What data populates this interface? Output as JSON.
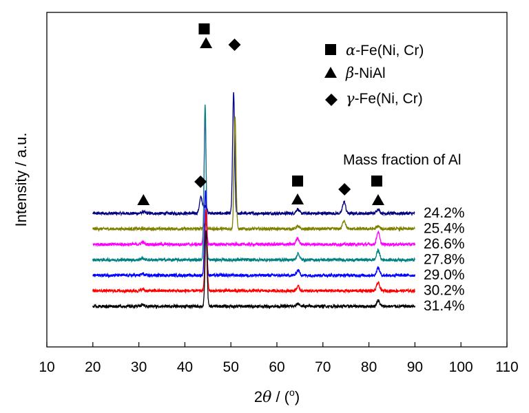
{
  "chart_data": {
    "type": "line",
    "title": "",
    "xlabel": {
      "prefix": "2",
      "symbol": "θ",
      "suffix": " / (",
      "degree": "o",
      "close": ")"
    },
    "ylabel": "Intensity / a.u.",
    "xlim": [
      10,
      110
    ],
    "x_ticks": [
      10,
      20,
      30,
      40,
      50,
      60,
      70,
      80,
      90,
      100,
      110
    ],
    "y_ticks": [],
    "x_range": [
      20,
      90
    ],
    "legend": [
      {
        "marker": "square",
        "greek": "α",
        "label": "-Fe(Ni, Cr)"
      },
      {
        "marker": "triangle",
        "greek": "β",
        "label": "-NiAl"
      },
      {
        "marker": "diamond",
        "greek": "γ",
        "label": "-Fe(Ni, Cr)"
      }
    ],
    "series_title": "Mass fraction of Al",
    "series": [
      {
        "name": "24.2%",
        "color": "#000080",
        "baseline": 0,
        "peaks": [
          [
            31.0,
            0.3
          ],
          [
            43.5,
            3.0
          ],
          [
            44.5,
            1.5
          ],
          [
            50.6,
            22.5
          ],
          [
            64.5,
            0.8
          ],
          [
            74.6,
            2.2
          ],
          [
            82.0,
            0.8
          ]
        ]
      },
      {
        "name": "25.4%",
        "color": "#808000",
        "baseline": 1,
        "peaks": [
          [
            44.4,
            1.0
          ],
          [
            50.9,
            21.0
          ],
          [
            64.5,
            0.5
          ],
          [
            74.6,
            1.6
          ],
          [
            82.0,
            0.5
          ]
        ]
      },
      {
        "name": "26.6%",
        "color": "#FF00FF",
        "baseline": 2,
        "peaks": [
          [
            30.8,
            0.4
          ],
          [
            44.4,
            23.5
          ],
          [
            64.5,
            1.2
          ],
          [
            82.0,
            2.3
          ]
        ]
      },
      {
        "name": "27.8%",
        "color": "#008080",
        "baseline": 3,
        "peaks": [
          [
            30.8,
            0.3
          ],
          [
            44.4,
            29.0
          ],
          [
            64.6,
            1.2
          ],
          [
            82.0,
            1.8
          ]
        ]
      },
      {
        "name": "29.0%",
        "color": "#0000FF",
        "baseline": 4,
        "peaks": [
          [
            30.8,
            0.3
          ],
          [
            44.5,
            16.0
          ],
          [
            64.6,
            1.0
          ],
          [
            82.0,
            1.4
          ]
        ]
      },
      {
        "name": "30.2%",
        "color": "#FF0000",
        "baseline": 5,
        "peaks": [
          [
            30.8,
            0.3
          ],
          [
            44.6,
            15.0
          ],
          [
            64.6,
            0.8
          ],
          [
            82.0,
            1.5
          ]
        ]
      },
      {
        "name": "31.4%",
        "color": "#000000",
        "baseline": 6,
        "peaks": [
          [
            30.8,
            0.3
          ],
          [
            44.6,
            14.0
          ],
          [
            64.6,
            0.5
          ],
          [
            82.0,
            1.1
          ]
        ]
      }
    ],
    "phase_markers": [
      {
        "phase": "beta",
        "x": 31.0
      },
      {
        "phase": "gamma",
        "x": 43.4
      },
      {
        "phase": "alpha",
        "x": 44.2
      },
      {
        "phase": "beta",
        "x": 44.6
      },
      {
        "phase": "gamma",
        "x": 50.8
      },
      {
        "phase": "alpha",
        "x": 64.5
      },
      {
        "phase": "beta",
        "x": 64.5
      },
      {
        "phase": "gamma",
        "x": 74.7
      },
      {
        "phase": "alpha",
        "x": 81.7
      },
      {
        "phase": "beta",
        "x": 82.0
      }
    ]
  }
}
